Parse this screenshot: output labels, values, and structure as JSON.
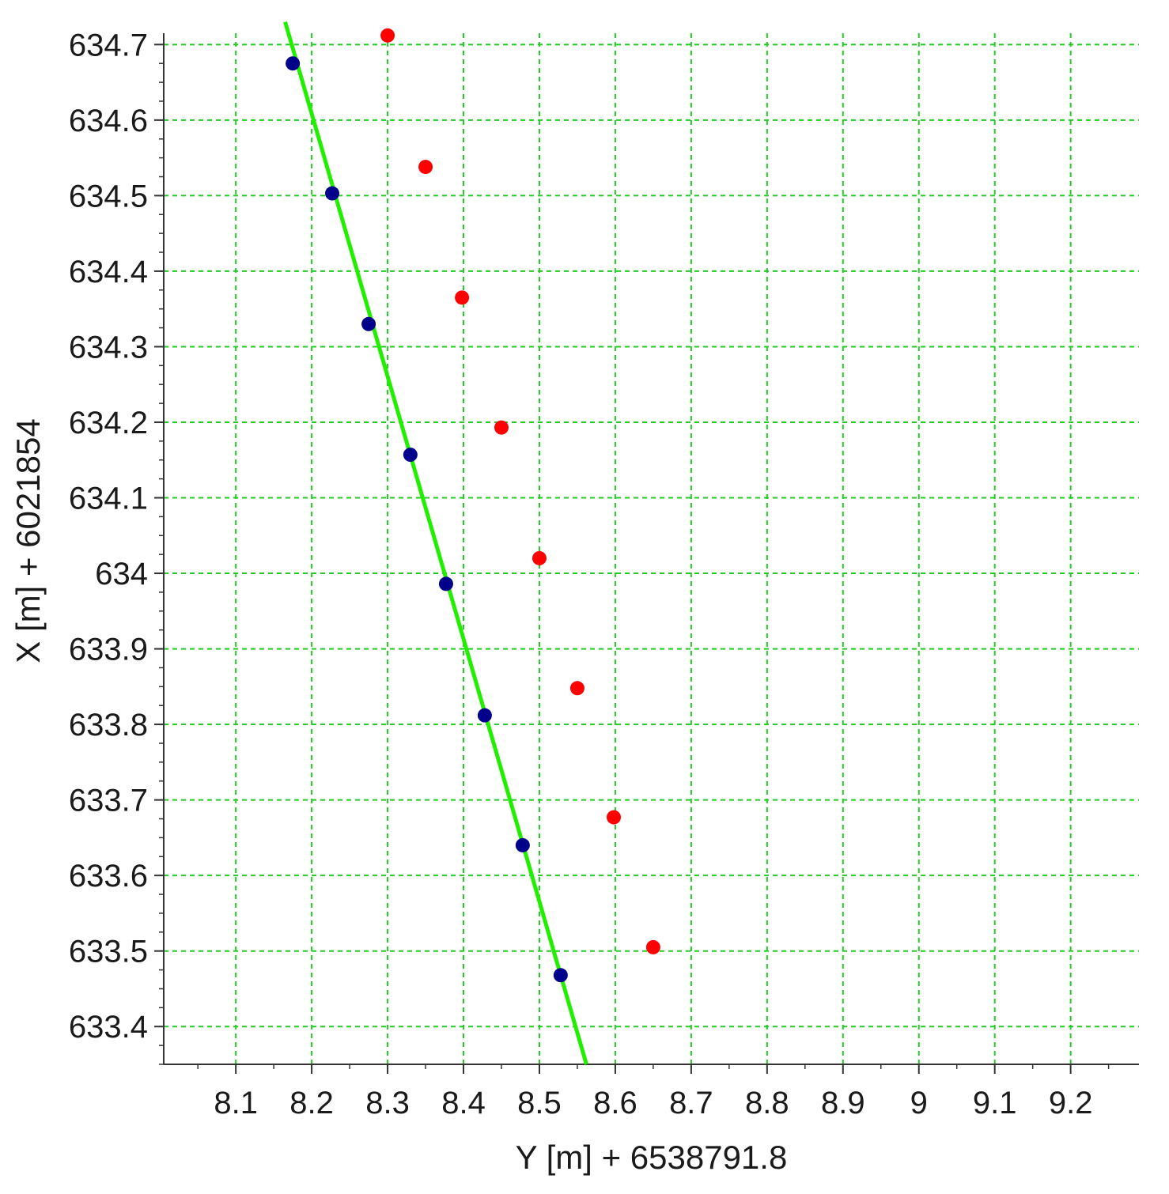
{
  "chart_data": {
    "type": "scatter",
    "title": "",
    "xlabel": "Y [m] + 6538791.8",
    "ylabel": "X [m] + 6021854",
    "xlim": [
      8.005,
      9.29
    ],
    "ylim": [
      633.35,
      634.715
    ],
    "x_ticks": [
      "8.1",
      "8.2",
      "8.3",
      "8.4",
      "8.5",
      "8.6",
      "8.7",
      "8.8",
      "8.9",
      "9",
      "9.1",
      "9.2"
    ],
    "y_ticks": [
      "634.7",
      "634.6",
      "634.5",
      "634.4",
      "634.3",
      "634.2",
      "634.1",
      "634",
      "633.9",
      "633.8",
      "633.7",
      "633.6",
      "633.5",
      "633.4"
    ],
    "grid": true,
    "grid_color": "#22cc22",
    "series": [
      {
        "kind": "line",
        "color": "#22ee00",
        "points": [
          [
            8.165,
            634.73
          ],
          [
            8.562,
            633.35
          ]
        ]
      },
      {
        "kind": "points",
        "color": "#00008b",
        "points": [
          [
            8.175,
            634.675
          ],
          [
            8.227,
            634.503
          ],
          [
            8.275,
            634.33
          ],
          [
            8.33,
            634.157
          ],
          [
            8.377,
            633.986
          ],
          [
            8.428,
            633.812
          ],
          [
            8.478,
            633.64
          ],
          [
            8.528,
            633.468
          ]
        ]
      },
      {
        "kind": "points",
        "color": "#ff0000",
        "points": [
          [
            8.3,
            634.712
          ],
          [
            8.35,
            634.538
          ],
          [
            8.398,
            634.365
          ],
          [
            8.45,
            634.193
          ],
          [
            8.5,
            634.02
          ],
          [
            8.55,
            633.848
          ],
          [
            8.598,
            633.677
          ],
          [
            8.65,
            633.505
          ]
        ]
      }
    ]
  }
}
